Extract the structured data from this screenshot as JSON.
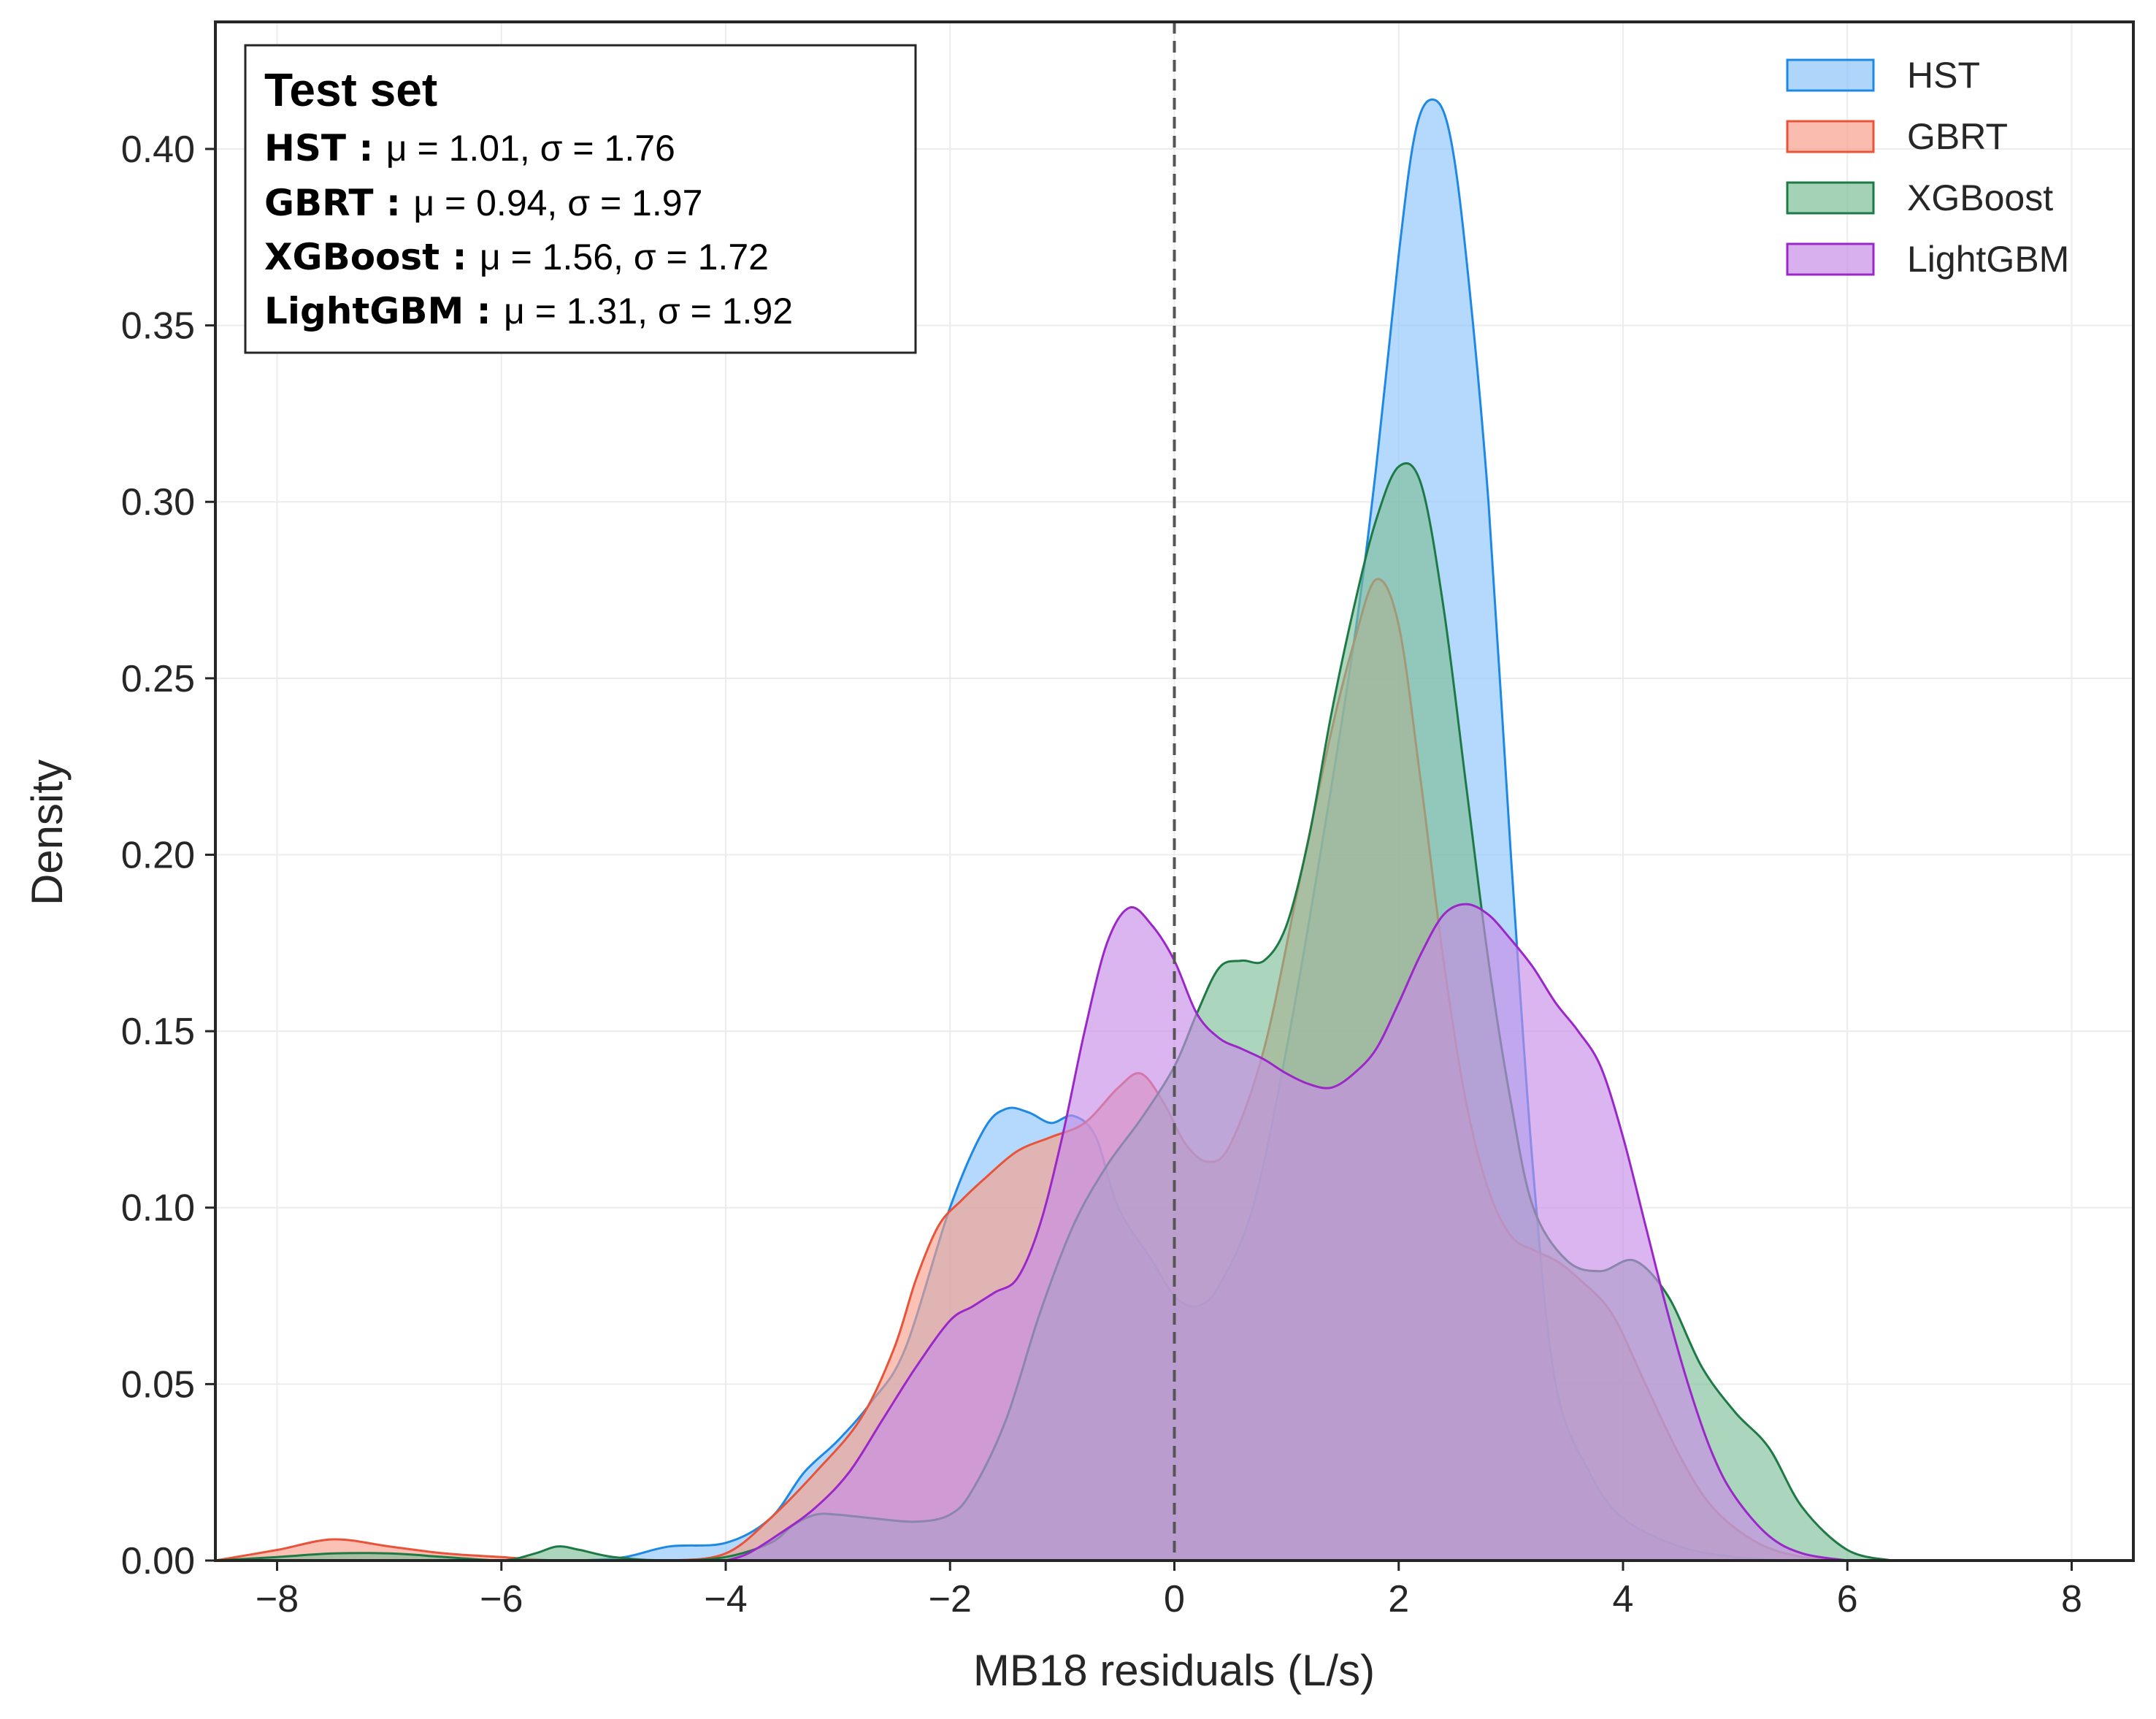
{
  "chart_data": {
    "type": "area",
    "xlabel": "MB18 residuals (L/s)",
    "ylabel": "Density",
    "xlim": [
      -8.55,
      8.55
    ],
    "ylim": [
      0,
      0.436
    ],
    "xticks": [
      -8,
      -6,
      -4,
      -2,
      0,
      2,
      4,
      6,
      8
    ],
    "xtick_labels": [
      "−8",
      "−6",
      "−4",
      "−2",
      "0",
      "2",
      "4",
      "6",
      "8"
    ],
    "yticks": [
      0,
      0.05,
      0.1,
      0.15,
      0.2,
      0.25,
      0.3,
      0.35,
      0.4
    ],
    "ytick_labels": [
      "0.00",
      "0.05",
      "0.10",
      "0.15",
      "0.20",
      "0.25",
      "0.30",
      "0.35",
      "0.40"
    ],
    "grid": true,
    "reference_line": {
      "x": 0,
      "style": "dashed",
      "color": "#555555"
    },
    "legend_position": "top-right",
    "stats_box": {
      "title": "Test set",
      "rows": [
        {
          "name": "HST",
          "value": "μ = 1.01, σ = 1.76"
        },
        {
          "name": "GBRT",
          "value": "μ = 0.94, σ = 1.97"
        },
        {
          "name": "XGBoost",
          "value": "μ = 1.56, σ = 1.72"
        },
        {
          "name": "LightGBM",
          "value": "μ = 1.31, σ = 1.92"
        }
      ]
    },
    "series": [
      {
        "name": "HST",
        "fill": "#8cc4fa",
        "stroke": "#1e88e5",
        "x": [
          -5.3,
          -4.9,
          -4.5,
          -4.0,
          -3.6,
          -3.3,
          -3.0,
          -2.7,
          -2.4,
          -2.0,
          -1.7,
          -1.5,
          -1.3,
          -1.1,
          -0.9,
          -0.7,
          -0.5,
          -0.2,
          0.0,
          0.2,
          0.4,
          0.7,
          1.0,
          1.3,
          1.6,
          1.8,
          2.0,
          2.15,
          2.3,
          2.45,
          2.6,
          2.8,
          3.0,
          3.2,
          3.4,
          3.7,
          4.0,
          4.5,
          5.0,
          5.5
        ],
        "y": [
          0,
          0.001,
          0.004,
          0.005,
          0.012,
          0.025,
          0.034,
          0.045,
          0.06,
          0.1,
          0.122,
          0.128,
          0.127,
          0.124,
          0.126,
          0.12,
          0.1,
          0.085,
          0.075,
          0.072,
          0.078,
          0.1,
          0.145,
          0.2,
          0.26,
          0.31,
          0.37,
          0.405,
          0.414,
          0.405,
          0.37,
          0.3,
          0.2,
          0.11,
          0.05,
          0.025,
          0.012,
          0.004,
          0.001,
          0
        ]
      },
      {
        "name": "GBRT",
        "fill": "#f8a08c",
        "stroke": "#e8533a",
        "x": [
          -8.6,
          -8.0,
          -7.5,
          -7.0,
          -6.5,
          -6.0,
          -5.5,
          -5.0,
          -4.5,
          -4.0,
          -3.6,
          -3.2,
          -2.8,
          -2.5,
          -2.3,
          -2.1,
          -1.9,
          -1.7,
          -1.4,
          -1.1,
          -0.8,
          -0.5,
          -0.3,
          -0.1,
          0.1,
          0.3,
          0.5,
          0.8,
          1.1,
          1.4,
          1.6,
          1.8,
          2.0,
          2.2,
          2.4,
          2.6,
          2.8,
          3.0,
          3.2,
          3.4,
          3.6,
          3.9,
          4.2,
          4.5,
          4.8,
          5.2,
          5.6,
          6.0
        ],
        "y": [
          0.0,
          0.003,
          0.006,
          0.004,
          0.002,
          0.001,
          0.0,
          0.0,
          0.0,
          0.002,
          0.012,
          0.025,
          0.04,
          0.06,
          0.08,
          0.095,
          0.102,
          0.108,
          0.116,
          0.12,
          0.124,
          0.134,
          0.138,
          0.13,
          0.118,
          0.113,
          0.118,
          0.145,
          0.19,
          0.235,
          0.26,
          0.278,
          0.265,
          0.22,
          0.17,
          0.13,
          0.105,
          0.092,
          0.088,
          0.085,
          0.08,
          0.07,
          0.05,
          0.03,
          0.015,
          0.005,
          0.001,
          0
        ]
      },
      {
        "name": "XGBoost",
        "fill": "#7ebf98",
        "stroke": "#1e7a45",
        "x": [
          -8.6,
          -8.0,
          -7.5,
          -7.0,
          -6.5,
          -6.0,
          -5.7,
          -5.5,
          -5.3,
          -5.0,
          -4.5,
          -4.0,
          -3.6,
          -3.4,
          -3.2,
          -3.0,
          -2.7,
          -2.3,
          -2.0,
          -1.8,
          -1.5,
          -1.2,
          -0.9,
          -0.6,
          -0.3,
          0.0,
          0.2,
          0.4,
          0.6,
          0.8,
          1.0,
          1.2,
          1.4,
          1.6,
          1.8,
          2.0,
          2.2,
          2.4,
          2.6,
          2.8,
          3.0,
          3.2,
          3.5,
          3.8,
          4.1,
          4.4,
          4.7,
          5.0,
          5.3,
          5.6,
          6.0,
          6.4
        ],
        "y": [
          0.0,
          0.001,
          0.002,
          0.002,
          0.001,
          0.0,
          0.002,
          0.004,
          0.003,
          0.001,
          0.0,
          0.001,
          0.005,
          0.01,
          0.013,
          0.013,
          0.012,
          0.011,
          0.013,
          0.02,
          0.04,
          0.07,
          0.095,
          0.112,
          0.125,
          0.14,
          0.155,
          0.168,
          0.17,
          0.17,
          0.18,
          0.205,
          0.24,
          0.27,
          0.295,
          0.31,
          0.305,
          0.27,
          0.22,
          0.17,
          0.13,
          0.1,
          0.085,
          0.082,
          0.085,
          0.075,
          0.055,
          0.042,
          0.032,
          0.015,
          0.003,
          0
        ]
      },
      {
        "name": "LightGBM",
        "fill": "#c78ee6",
        "stroke": "#9b27c9",
        "x": [
          -4.0,
          -3.8,
          -3.5,
          -3.2,
          -2.9,
          -2.6,
          -2.3,
          -2.0,
          -1.8,
          -1.6,
          -1.4,
          -1.2,
          -1.0,
          -0.8,
          -0.6,
          -0.4,
          -0.2,
          0.0,
          0.2,
          0.4,
          0.6,
          0.8,
          1.0,
          1.2,
          1.4,
          1.6,
          1.8,
          2.0,
          2.2,
          2.4,
          2.6,
          2.8,
          3.0,
          3.2,
          3.4,
          3.6,
          3.8,
          4.0,
          4.2,
          4.4,
          4.6,
          4.8,
          5.0,
          5.3,
          5.6,
          6.0
        ],
        "y": [
          0.0,
          0.002,
          0.008,
          0.015,
          0.025,
          0.04,
          0.055,
          0.068,
          0.072,
          0.076,
          0.08,
          0.095,
          0.12,
          0.15,
          0.175,
          0.185,
          0.18,
          0.17,
          0.155,
          0.148,
          0.145,
          0.142,
          0.138,
          0.135,
          0.134,
          0.138,
          0.145,
          0.158,
          0.172,
          0.183,
          0.186,
          0.183,
          0.176,
          0.168,
          0.158,
          0.15,
          0.14,
          0.12,
          0.095,
          0.07,
          0.048,
          0.03,
          0.018,
          0.007,
          0.002,
          0
        ]
      }
    ]
  }
}
